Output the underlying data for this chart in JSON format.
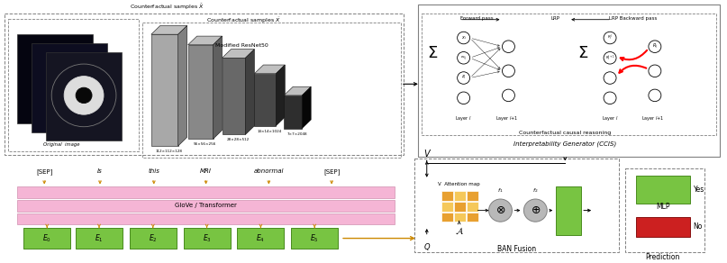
{
  "bg": "#ffffff",
  "pink": "#f5b5d5",
  "green": "#78c442",
  "dark_green": "#4a8c20",
  "orange_fill": "#e8a030",
  "orange_arrow": "#cc8800",
  "red": "#cc2020",
  "gray1": "#a8a8a8",
  "gray2": "#888888",
  "gray3": "#686868",
  "gray4": "#484848",
  "gray5": "#2e2e2e",
  "words": [
    "[SEP]",
    "Is",
    "this",
    "MRI",
    "abnormal",
    "[SEP]"
  ],
  "word_italic": [
    false,
    true,
    true,
    true,
    true,
    false
  ],
  "embed_labels": [
    "E_0",
    "E_1",
    "E_2",
    "E_3",
    "E_4",
    "E_5"
  ],
  "bar_labels": [
    "112×112×128",
    "56×56×256",
    "28×28×512",
    "14×14×1024",
    "7×7×2048"
  ],
  "bar_colors": [
    "#a8a8a8",
    "#888888",
    "#686868",
    "#484848",
    "#2e2e2e"
  ],
  "bar_x": [
    167,
    208,
    246,
    282,
    315
  ],
  "bar_y": [
    38,
    50,
    65,
    83,
    108
  ],
  "bar_w": [
    30,
    28,
    26,
    24,
    20
  ],
  "bar_h": [
    128,
    108,
    88,
    60,
    38
  ]
}
